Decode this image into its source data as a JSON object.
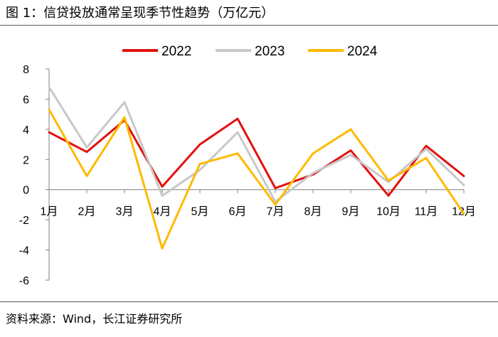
{
  "figure": {
    "title": "图 1：信贷投放通常呈现季节性趋势（万亿元）",
    "source": "资料来源：Wind，长江证券研究所"
  },
  "chart_data": {
    "type": "line",
    "categories": [
      "1月",
      "2月",
      "3月",
      "4月",
      "5月",
      "6月",
      "7月",
      "8月",
      "9月",
      "10月",
      "11月",
      "12月"
    ],
    "series": [
      {
        "name": "2022",
        "color": "#e0120f",
        "values": [
          3.8,
          2.5,
          4.6,
          0.2,
          3.0,
          4.7,
          0.1,
          1.0,
          2.6,
          -0.4,
          2.9,
          0.9
        ]
      },
      {
        "name": "2023",
        "color": "#c8c8c8",
        "values": [
          6.8,
          2.8,
          5.8,
          -0.4,
          1.3,
          3.8,
          -0.8,
          1.1,
          2.3,
          0.5,
          2.7,
          0.3
        ]
      },
      {
        "name": "2024",
        "color": "#ffba00",
        "values": [
          5.3,
          0.9,
          4.8,
          -3.9,
          1.7,
          2.4,
          -1.0,
          2.4,
          4.0,
          0.6,
          2.1,
          -1.6
        ]
      }
    ],
    "yticks": [
      8,
      6,
      4,
      2,
      0,
      -2,
      -4,
      -6
    ],
    "ylim": [
      -6,
      8
    ],
    "legend": "top",
    "grid": false
  }
}
